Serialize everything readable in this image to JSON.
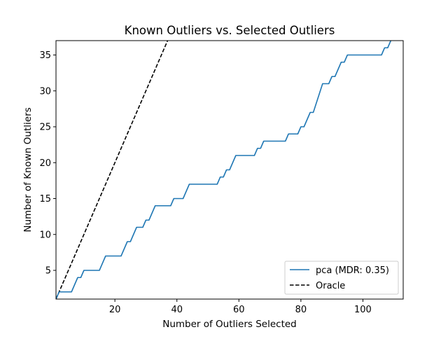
{
  "chart_data": {
    "type": "line",
    "title": "Known Outliers vs. Selected Outliers",
    "xlabel": "Number of Outliers Selected",
    "ylabel": "Number of Known Outliers",
    "xlim": [
      1,
      113
    ],
    "ylim": [
      1,
      37
    ],
    "xticks": [
      20,
      40,
      60,
      80,
      100
    ],
    "yticks": [
      5,
      10,
      15,
      20,
      25,
      30,
      35
    ],
    "grid": false,
    "legend_position": "bottom-right",
    "series": [
      {
        "name": "pca (MDR: 0.35)",
        "color": "#1f77b4",
        "style": "solid",
        "points": [
          [
            1,
            1
          ],
          [
            2,
            2
          ],
          [
            6,
            2
          ],
          [
            8,
            4
          ],
          [
            9,
            4
          ],
          [
            10,
            5
          ],
          [
            15,
            5
          ],
          [
            17,
            7
          ],
          [
            22,
            7
          ],
          [
            24,
            9
          ],
          [
            25,
            9
          ],
          [
            27,
            11
          ],
          [
            29,
            11
          ],
          [
            30,
            12
          ],
          [
            31,
            12
          ],
          [
            33,
            14
          ],
          [
            38,
            14
          ],
          [
            39,
            15
          ],
          [
            42,
            15
          ],
          [
            44,
            17
          ],
          [
            53,
            17
          ],
          [
            54,
            18
          ],
          [
            55,
            18
          ],
          [
            56,
            19
          ],
          [
            57,
            19
          ],
          [
            59,
            21
          ],
          [
            65,
            21
          ],
          [
            66,
            22
          ],
          [
            67,
            22
          ],
          [
            68,
            23
          ],
          [
            75,
            23
          ],
          [
            76,
            24
          ],
          [
            79,
            24
          ],
          [
            80,
            25
          ],
          [
            81,
            25
          ],
          [
            83,
            27
          ],
          [
            84,
            27
          ],
          [
            87,
            31
          ],
          [
            89,
            31
          ],
          [
            90,
            32
          ],
          [
            91,
            32
          ],
          [
            93,
            34
          ],
          [
            94,
            34
          ],
          [
            95,
            35
          ],
          [
            106,
            35
          ],
          [
            107,
            36
          ],
          [
            108,
            36
          ],
          [
            109,
            37
          ]
        ]
      },
      {
        "name": "Oracle",
        "color": "#000000",
        "style": "dashed",
        "points": [
          [
            1,
            1
          ],
          [
            37,
            37
          ]
        ]
      }
    ]
  }
}
